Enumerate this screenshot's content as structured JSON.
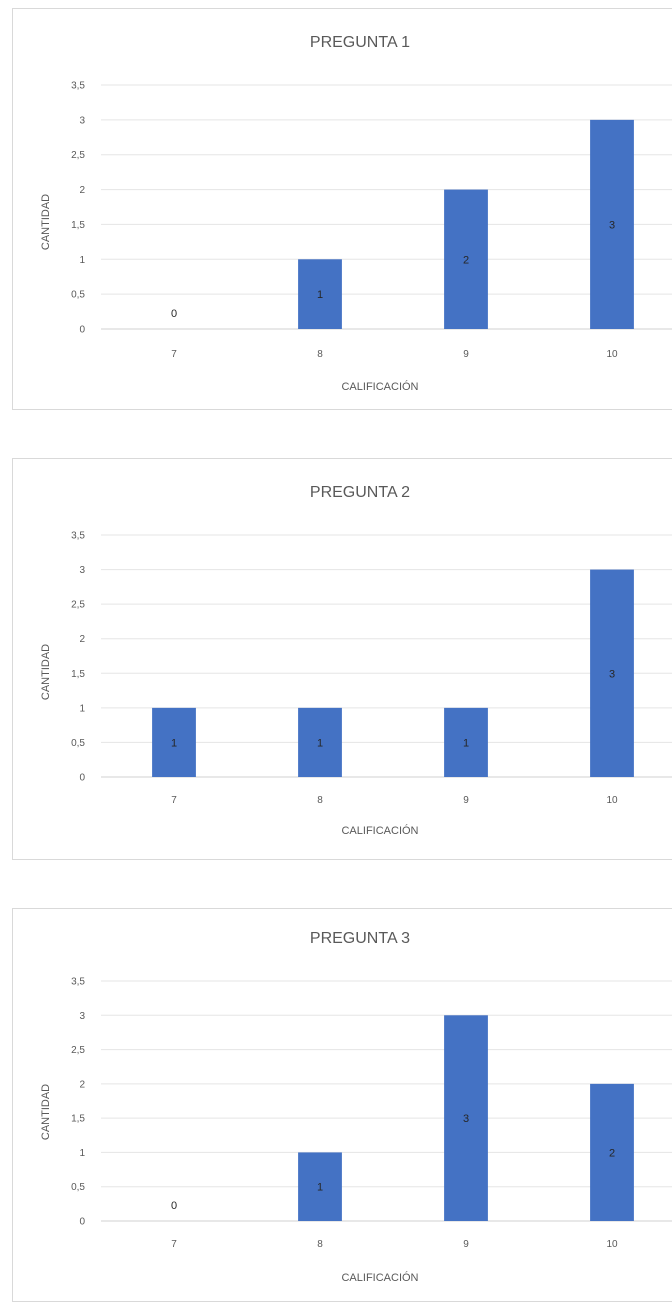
{
  "chart_data": [
    {
      "type": "bar",
      "title": "PREGUNTA 1",
      "xlabel": "CALIFICACIÓN",
      "ylabel": "CANTIDAD",
      "categories": [
        "7",
        "8",
        "9",
        "10"
      ],
      "values": [
        0,
        1,
        2,
        3
      ],
      "ylim": [
        0,
        3.5
      ],
      "yticks": [
        "0",
        "0,5",
        "1",
        "1,5",
        "2",
        "2,5",
        "3",
        "3,5"
      ],
      "bar_color": "#4472c4",
      "grid": true,
      "legend": "none"
    },
    {
      "type": "bar",
      "title": "PREGUNTA 2",
      "xlabel": "CALIFICACIÓN",
      "ylabel": "CANTIDAD",
      "categories": [
        "7",
        "8",
        "9",
        "10"
      ],
      "values": [
        1,
        1,
        1,
        3
      ],
      "ylim": [
        0,
        3.5
      ],
      "yticks": [
        "0",
        "0,5",
        "1",
        "1,5",
        "2",
        "2,5",
        "3",
        "3,5"
      ],
      "bar_color": "#4472c4",
      "grid": true,
      "legend": "none"
    },
    {
      "type": "bar",
      "title": "PREGUNTA 3",
      "xlabel": "CALIFICACIÓN",
      "ylabel": "CANTIDAD",
      "categories": [
        "7",
        "8",
        "9",
        "10"
      ],
      "values": [
        0,
        1,
        3,
        2
      ],
      "ylim": [
        0,
        3.5
      ],
      "yticks": [
        "0",
        "0,5",
        "1",
        "1,5",
        "2",
        "2,5",
        "3",
        "3,5"
      ],
      "bar_color": "#4472c4",
      "grid": true,
      "legend": "none"
    }
  ]
}
